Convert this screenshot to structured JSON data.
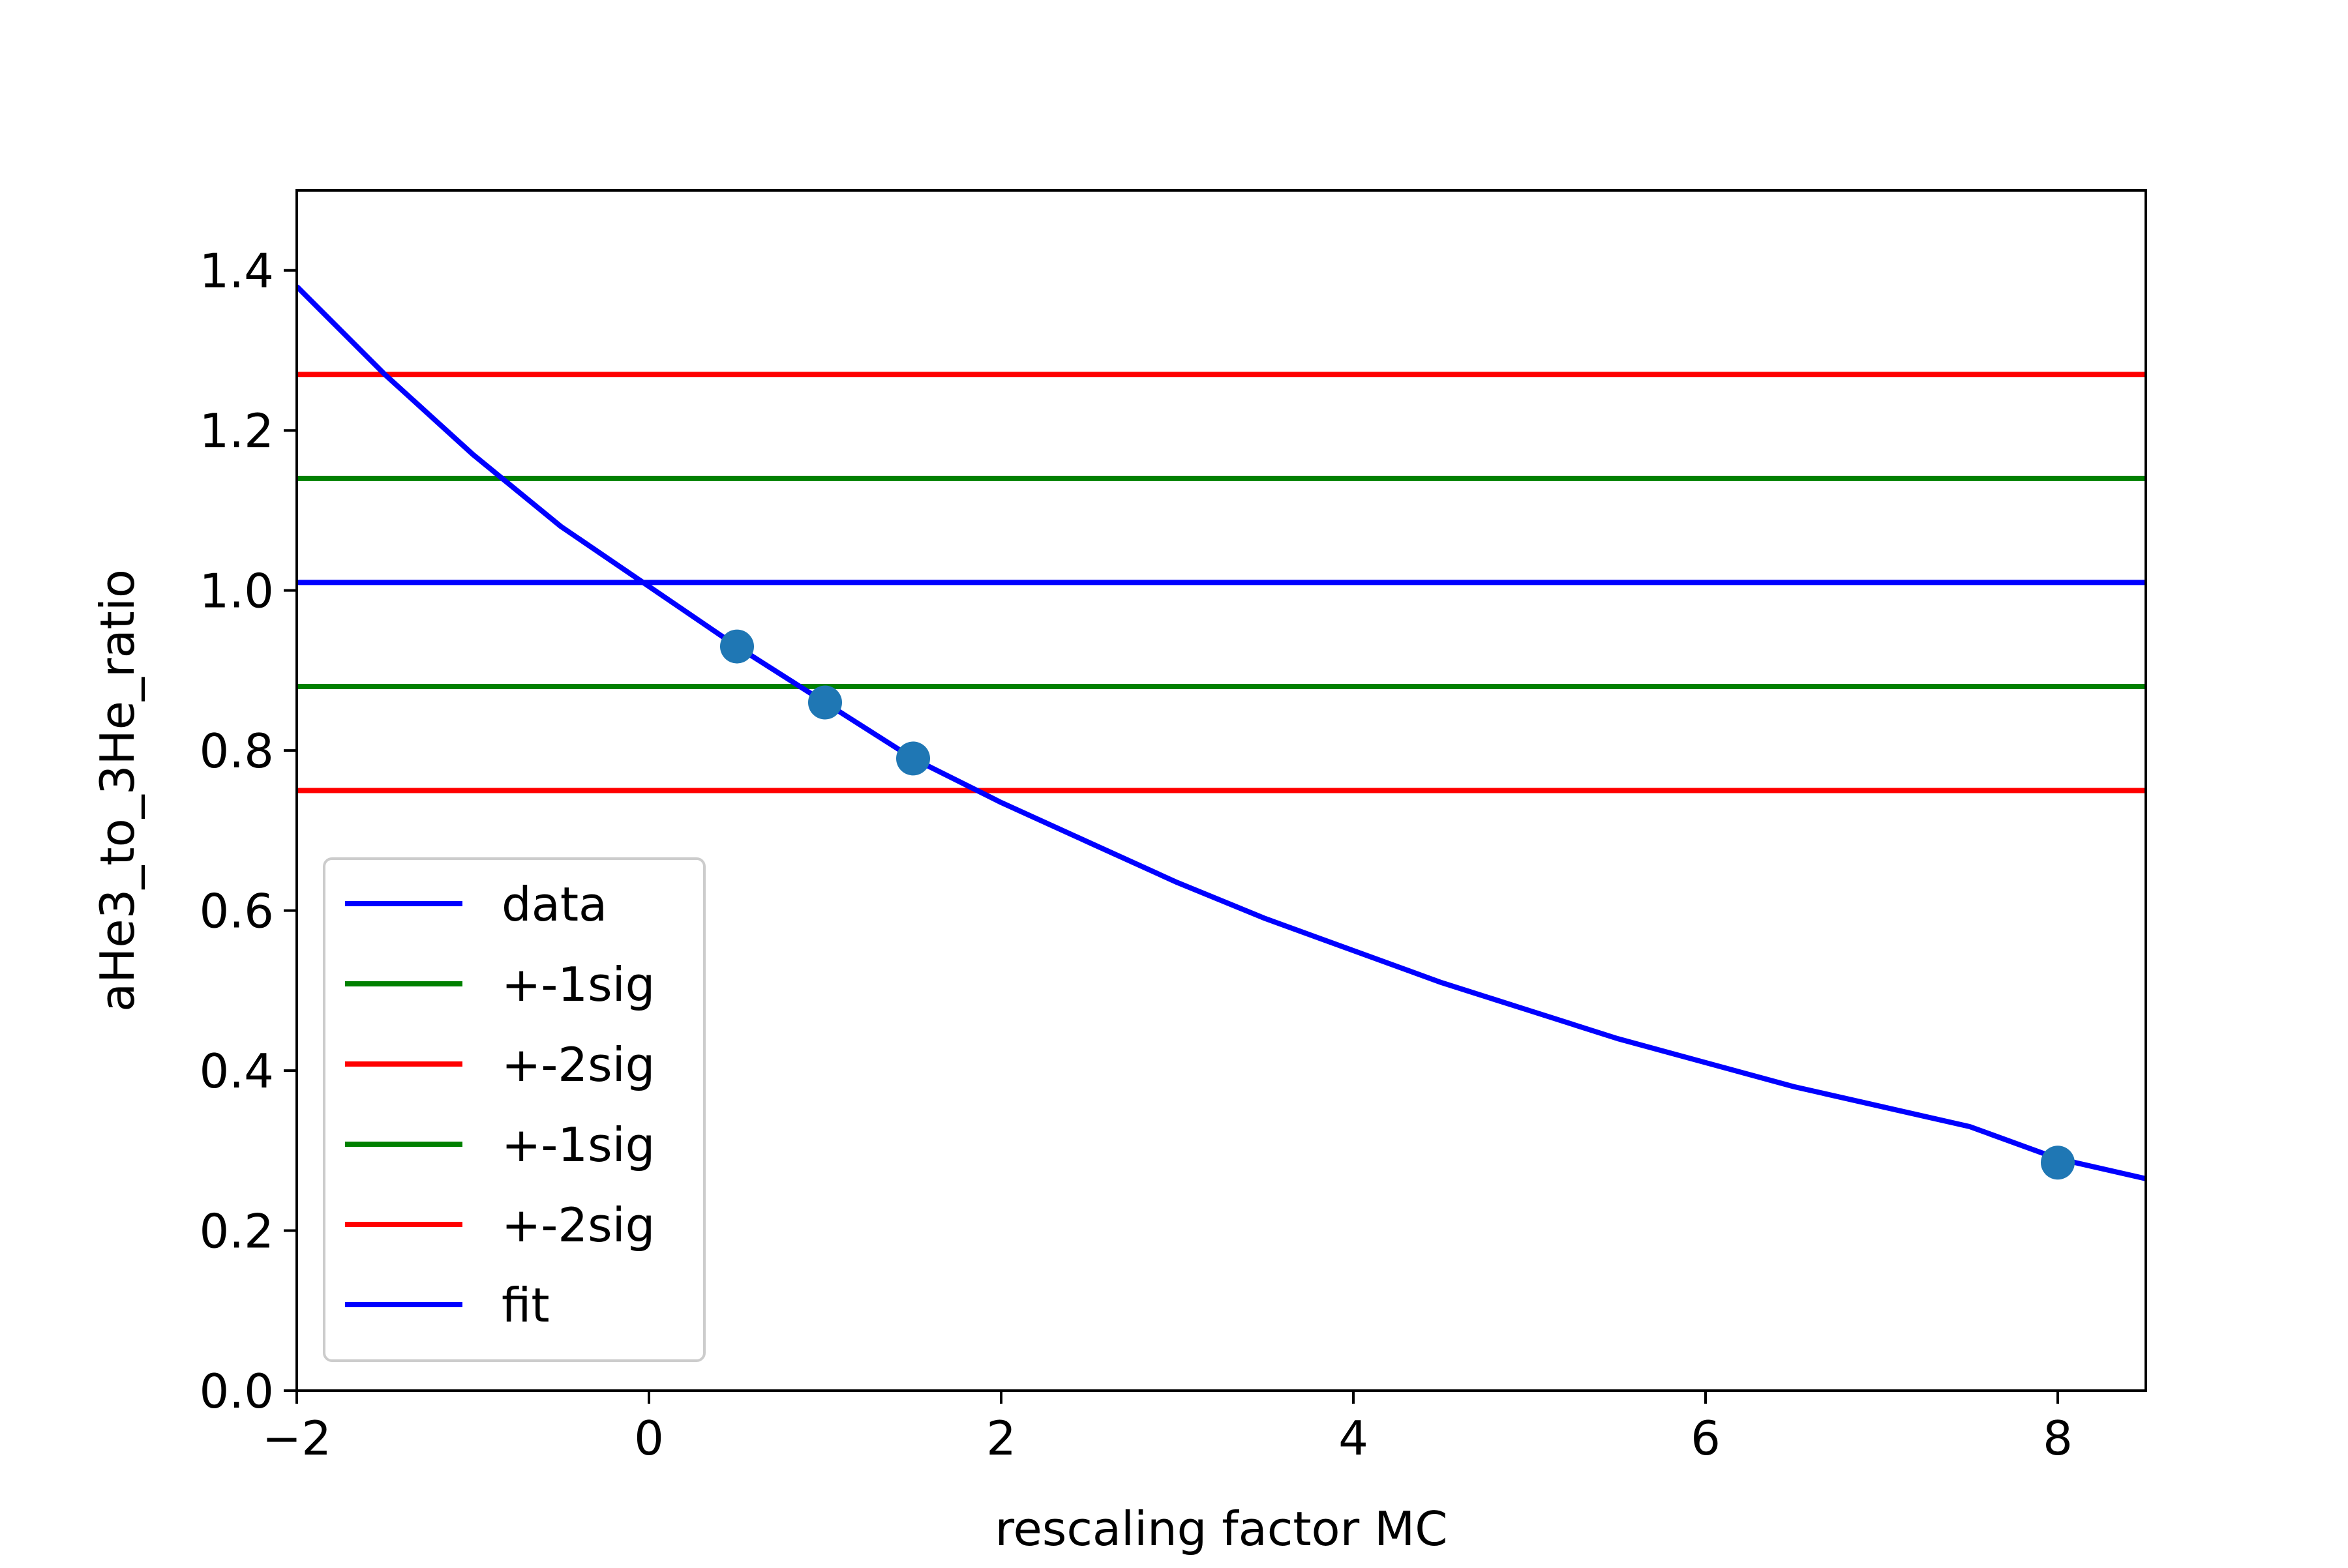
{
  "chart_data": {
    "type": "line",
    "title": "",
    "xlabel": "rescaling factor MC",
    "ylabel": "aHe3_to_3He_ratio",
    "xlim": [
      -2,
      8.5
    ],
    "ylim": [
      0.0,
      1.5
    ],
    "xticks": [
      -2,
      0,
      2,
      4,
      6,
      8
    ],
    "xtick_labels": [
      "−2",
      "0",
      "2",
      "4",
      "6",
      "8"
    ],
    "yticks": [
      0.0,
      0.2,
      0.4,
      0.6,
      0.8,
      1.0,
      1.2,
      1.4
    ],
    "ytick_labels": [
      "0.0",
      "0.2",
      "0.4",
      "0.6",
      "0.8",
      "1.0",
      "1.2",
      "1.4"
    ],
    "grid": false,
    "legend_position": "lower-left",
    "hlines": [
      {
        "label": "data",
        "y": 1.01,
        "color": "#0000ff"
      },
      {
        "label": "+-1sig",
        "y": 1.14,
        "color": "#008000"
      },
      {
        "label": "+-2sig",
        "y": 1.27,
        "color": "#ff0000"
      },
      {
        "label": "+-1sig",
        "y": 0.88,
        "color": "#008000"
      },
      {
        "label": "+-2sig",
        "y": 0.75,
        "color": "#ff0000"
      }
    ],
    "fit": {
      "label": "fit",
      "color": "#0000ff",
      "x": [
        -2.0,
        -1.5,
        -1.0,
        -0.5,
        0.0,
        0.5,
        1.0,
        1.5,
        2.0,
        2.5,
        3.0,
        3.5,
        4.0,
        4.5,
        5.0,
        5.5,
        6.0,
        6.5,
        7.0,
        7.5,
        8.0,
        8.5
      ],
      "y": [
        1.38,
        1.27,
        1.17,
        1.08,
        1.005,
        0.93,
        0.86,
        0.79,
        0.735,
        0.685,
        0.635,
        0.59,
        0.55,
        0.51,
        0.475,
        0.44,
        0.41,
        0.38,
        0.355,
        0.33,
        0.29,
        0.265
      ]
    },
    "points": {
      "color": "#1f77b4",
      "x": [
        0.5,
        1.0,
        1.5,
        8.0
      ],
      "y": [
        0.93,
        0.86,
        0.79,
        0.285
      ]
    },
    "legend": [
      {
        "label": "data",
        "color": "#0000ff"
      },
      {
        "label": "+-1sig",
        "color": "#008000"
      },
      {
        "label": "+-2sig",
        "color": "#ff0000"
      },
      {
        "label": "+-1sig",
        "color": "#008000"
      },
      {
        "label": "+-2sig",
        "color": "#ff0000"
      },
      {
        "label": "fit",
        "color": "#0000ff"
      }
    ]
  }
}
